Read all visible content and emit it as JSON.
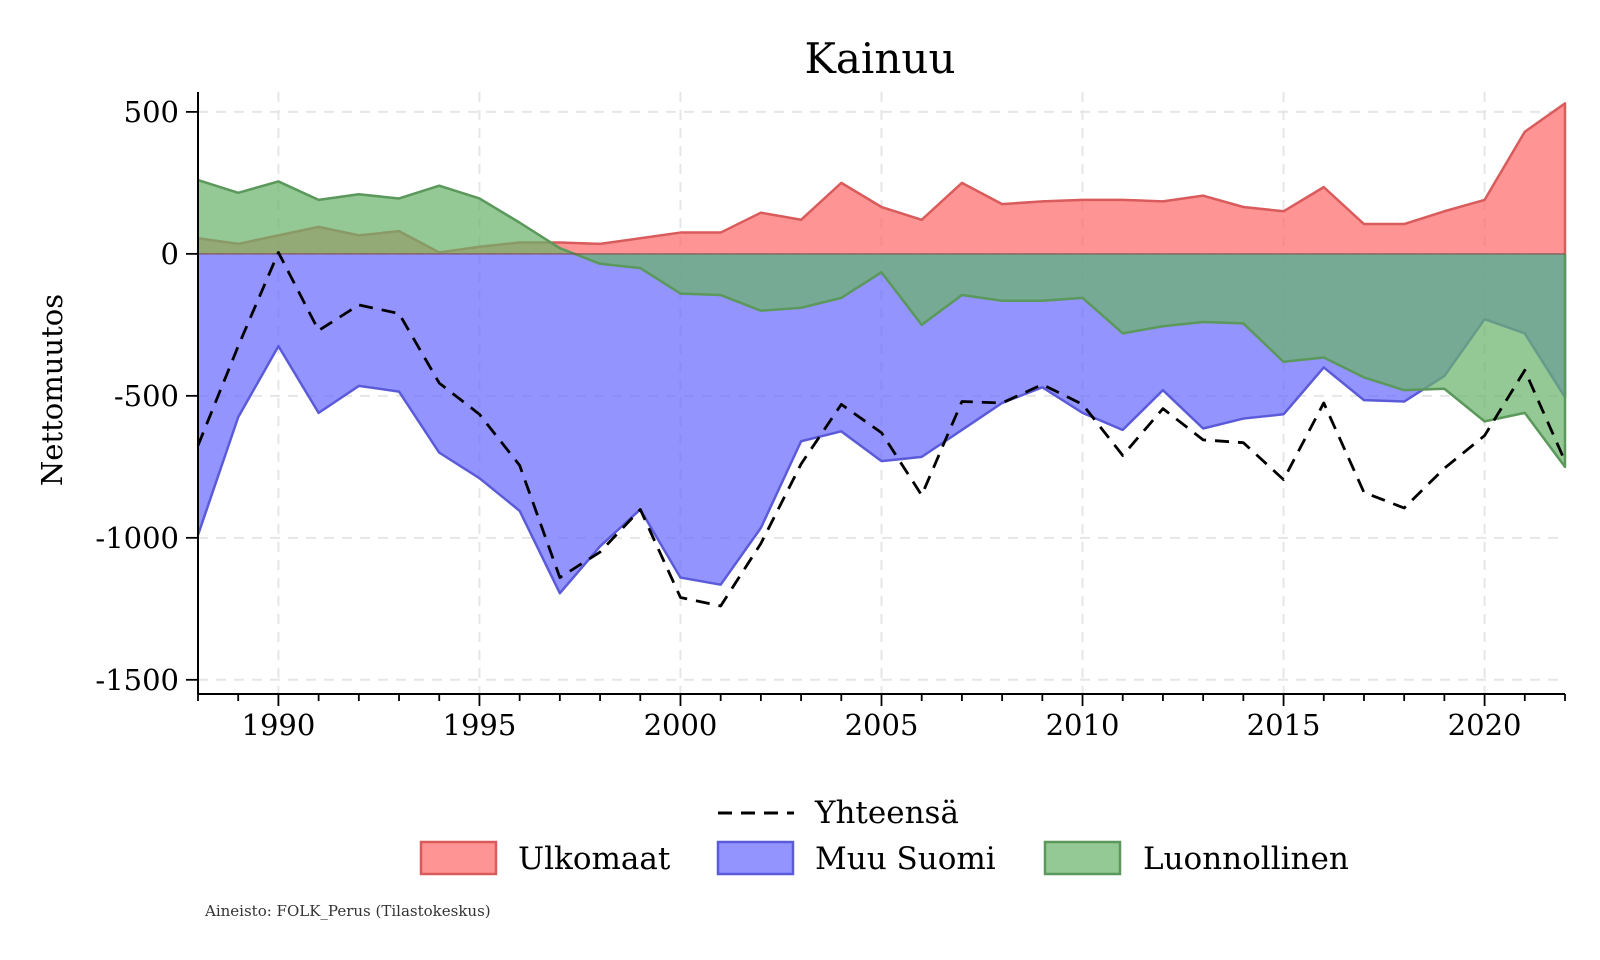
{
  "chart_data": {
    "type": "area",
    "title": "Kainuu",
    "xlabel": "",
    "ylabel": "Nettomuutos",
    "xlim": [
      1988,
      2022
    ],
    "ylim": [
      -1550,
      570
    ],
    "x_ticks": [
      1990,
      1995,
      2000,
      2005,
      2010,
      2015,
      2020
    ],
    "y_ticks": [
      500,
      0,
      -500,
      -1000,
      -1500
    ],
    "y_tick_labels": [
      "500",
      "0",
      "-500",
      "-1000",
      "-1500"
    ],
    "grid": true,
    "legend_placement": "bottom",
    "x": [
      1988,
      1989,
      1990,
      1991,
      1992,
      1993,
      1994,
      1995,
      1996,
      1997,
      1998,
      1999,
      2000,
      2001,
      2002,
      2003,
      2004,
      2005,
      2006,
      2007,
      2008,
      2009,
      2010,
      2011,
      2012,
      2013,
      2014,
      2015,
      2016,
      2017,
      2018,
      2019,
      2020,
      2021,
      2022
    ],
    "series": [
      {
        "name": "Ulkomaat",
        "kind": "area",
        "color": "#ff6b6b",
        "values": [
          55,
          35,
          65,
          95,
          65,
          80,
          5,
          25,
          40,
          40,
          35,
          55,
          75,
          75,
          145,
          120,
          250,
          165,
          120,
          250,
          175,
          185,
          190,
          190,
          185,
          205,
          165,
          150,
          235,
          105,
          105,
          150,
          190,
          430,
          530
        ]
      },
      {
        "name": "Muu Suomi",
        "kind": "area",
        "color": "#6b6bff",
        "values": [
          -990,
          -575,
          -325,
          -560,
          -465,
          -485,
          -700,
          -790,
          -905,
          -1195,
          -1030,
          -900,
          -1140,
          -1165,
          -965,
          -660,
          -625,
          -730,
          -715,
          -620,
          -525,
          -470,
          -560,
          -620,
          -480,
          -615,
          -580,
          -565,
          -400,
          -515,
          -520,
          -430,
          -230,
          -280,
          -505
        ]
      },
      {
        "name": "Luonnollinen",
        "kind": "area",
        "color": "#6bb36b",
        "values": [
          260,
          215,
          255,
          190,
          210,
          195,
          240,
          195,
          110,
          20,
          -35,
          -50,
          -140,
          -145,
          -200,
          -190,
          -155,
          -65,
          -250,
          -145,
          -165,
          -165,
          -155,
          -280,
          -255,
          -240,
          -245,
          -380,
          -365,
          -435,
          -480,
          -475,
          -590,
          -560,
          -750
        ]
      },
      {
        "name": "Yhteensä",
        "kind": "line",
        "color": "#000000",
        "dash": "dashed",
        "values": [
          -675,
          -325,
          5,
          -270,
          -180,
          -210,
          -455,
          -565,
          -745,
          -1140,
          -1050,
          -900,
          -1210,
          -1240,
          -1020,
          -740,
          -530,
          -630,
          -850,
          -520,
          -525,
          -460,
          -530,
          -710,
          -545,
          -655,
          -665,
          -795,
          -525,
          -840,
          -895,
          -755,
          -640,
          -410,
          -730
        ]
      }
    ],
    "legend": {
      "row1": [
        "Yhteensä"
      ],
      "row2": [
        "Ulkomaat",
        "Muu Suomi",
        "Luonnollinen"
      ]
    }
  },
  "footer": {
    "source": "Aineisto: FOLK_Perus (Tilastokeskus)"
  }
}
